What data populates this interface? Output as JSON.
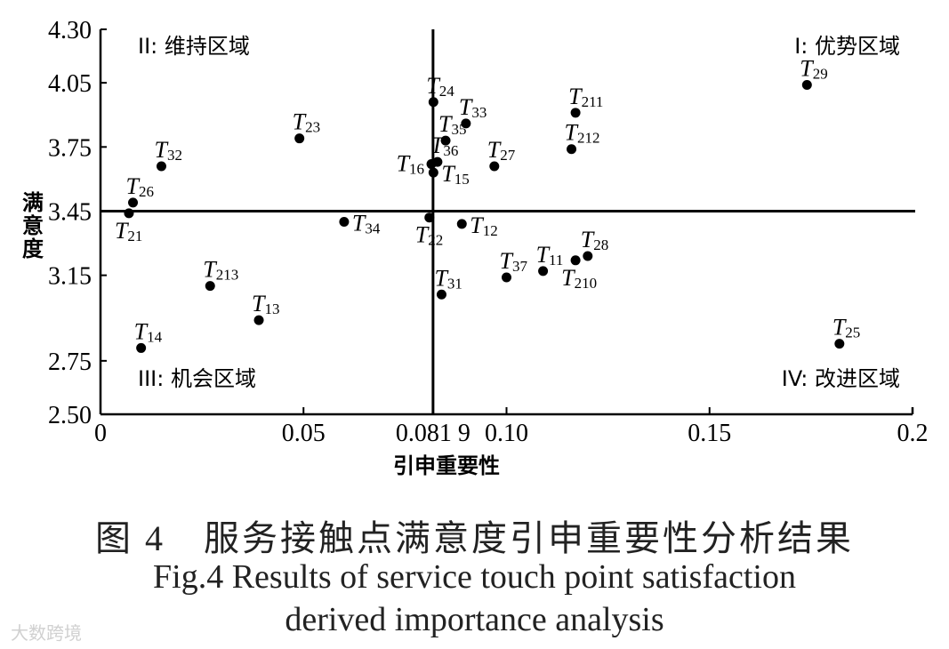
{
  "chart_data": {
    "type": "scatter",
    "xlabel": "引申重要性",
    "ylabel": "满意度",
    "xlim": [
      0,
      0.2
    ],
    "ylim": [
      2.5,
      4.3
    ],
    "x_ticks": [
      {
        "value": 0,
        "label": "0"
      },
      {
        "value": 0.05,
        "label": "0.05"
      },
      {
        "value": 0.0819,
        "label": "0.081 9"
      },
      {
        "value": 0.1,
        "label": "0.10"
      },
      {
        "value": 0.15,
        "label": "0.15"
      },
      {
        "value": 0.2,
        "label": "0.2"
      }
    ],
    "y_ticks": [
      {
        "value": 2.5,
        "label": "2.50"
      },
      {
        "value": 2.75,
        "label": "2.75"
      },
      {
        "value": 3.15,
        "label": "3.15"
      },
      {
        "value": 3.45,
        "label": "3.45"
      },
      {
        "value": 3.75,
        "label": "3.75"
      },
      {
        "value": 4.05,
        "label": "4.05"
      },
      {
        "value": 4.3,
        "label": "4.30"
      }
    ],
    "reference_lines": {
      "x": 0.0819,
      "y": 3.45
    },
    "quadrants": {
      "q1": "I: 优势区域",
      "q2": "II: 维持区域",
      "q3": "III: 机会区域",
      "q4": "IV: 改进区域"
    },
    "grid": false,
    "points": [
      {
        "base": "T",
        "sub": "29",
        "x": 0.174,
        "y": 4.04,
        "label_pos": "above"
      },
      {
        "base": "T",
        "sub": "24",
        "x": 0.082,
        "y": 3.96,
        "label_pos": "above"
      },
      {
        "base": "T",
        "sub": "33",
        "x": 0.09,
        "y": 3.86,
        "label_pos": "above"
      },
      {
        "base": "T",
        "sub": "211",
        "x": 0.117,
        "y": 3.91,
        "label_pos": "above"
      },
      {
        "base": "T",
        "sub": "35",
        "x": 0.085,
        "y": 3.78,
        "label_pos": "above"
      },
      {
        "base": "T",
        "sub": "212",
        "x": 0.116,
        "y": 3.74,
        "label_pos": "above"
      },
      {
        "base": "T",
        "sub": "23",
        "x": 0.049,
        "y": 3.79,
        "label_pos": "above"
      },
      {
        "base": "T",
        "sub": "32",
        "x": 0.015,
        "y": 3.66,
        "label_pos": "above"
      },
      {
        "base": "T",
        "sub": "36",
        "x": 0.083,
        "y": 3.68,
        "label_pos": "above"
      },
      {
        "base": "T",
        "sub": "16",
        "x": 0.0815,
        "y": 3.67,
        "label_pos": "left"
      },
      {
        "base": "T",
        "sub": "15",
        "x": 0.082,
        "y": 3.63,
        "label_pos": "right"
      },
      {
        "base": "T",
        "sub": "27",
        "x": 0.097,
        "y": 3.66,
        "label_pos": "above"
      },
      {
        "base": "T",
        "sub": "26",
        "x": 0.008,
        "y": 3.49,
        "label_pos": "above"
      },
      {
        "base": "T",
        "sub": "21",
        "x": 0.007,
        "y": 3.44,
        "label_pos": "below"
      },
      {
        "base": "T",
        "sub": "34",
        "x": 0.06,
        "y": 3.4,
        "label_pos": "right"
      },
      {
        "base": "T",
        "sub": "22",
        "x": 0.081,
        "y": 3.42,
        "label_pos": "below"
      },
      {
        "base": "T",
        "sub": "12",
        "x": 0.089,
        "y": 3.39,
        "label_pos": "right"
      },
      {
        "base": "T",
        "sub": "28",
        "x": 0.12,
        "y": 3.24,
        "label_pos": "above"
      },
      {
        "base": "T",
        "sub": "11",
        "x": 0.109,
        "y": 3.17,
        "label_pos": "above"
      },
      {
        "base": "T",
        "sub": "210",
        "x": 0.117,
        "y": 3.22,
        "label_pos": "below"
      },
      {
        "base": "T",
        "sub": "37",
        "x": 0.1,
        "y": 3.14,
        "label_pos": "above"
      },
      {
        "base": "T",
        "sub": "213",
        "x": 0.027,
        "y": 3.1,
        "label_pos": "above"
      },
      {
        "base": "T",
        "sub": "31",
        "x": 0.084,
        "y": 3.06,
        "label_pos": "above"
      },
      {
        "base": "T",
        "sub": "13",
        "x": 0.039,
        "y": 2.94,
        "label_pos": "above"
      },
      {
        "base": "T",
        "sub": "14",
        "x": 0.01,
        "y": 2.81,
        "label_pos": "above"
      },
      {
        "base": "T",
        "sub": "25",
        "x": 0.182,
        "y": 2.83,
        "label_pos": "above"
      }
    ]
  },
  "caption": {
    "zh": "图 4　服务接触点满意度引申重要性分析结果",
    "en_line1": "Fig.4 Results of service touch point satisfaction",
    "en_line2": "derived importance analysis"
  },
  "watermark": "大数跨境"
}
